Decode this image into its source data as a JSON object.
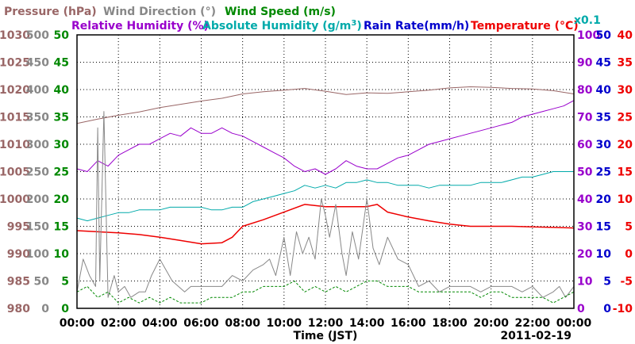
{
  "chart_data": {
    "type": "line",
    "date": "2011-02-19",
    "xlabel": "Time (JST)",
    "x_ticks": [
      "00:00",
      "02:00",
      "04:00",
      "06:00",
      "08:00",
      "10:00",
      "12:00",
      "14:00",
      "16:00",
      "18:00",
      "20:00",
      "22:00",
      "00:00"
    ],
    "x_range_hours": [
      0,
      24
    ],
    "legend": {
      "row1": [
        {
          "name": "Pressure (hPa)",
          "color": "#996666"
        },
        {
          "name": "Wind Direction (°)",
          "color": "#888888"
        },
        {
          "name": "Wind Speed (m/s)",
          "color": "#008800"
        }
      ],
      "row2": [
        {
          "name": "Relative Humidity (%)",
          "color": "#9900cc"
        },
        {
          "name": "Absolute Humidity (g/m³)",
          "color": "#00aaaa",
          "main": "Absolute Humidity (g/m",
          "sup": "3",
          "close": ")"
        },
        {
          "name": "Rain Rate(mm/h)",
          "color": "#0000cc"
        },
        {
          "name": "Temperature (°C)",
          "color": "#ee0000"
        }
      ],
      "scale_note": "x0.1"
    },
    "axes": {
      "pressure": {
        "color": "#996666",
        "min": 980,
        "max": 1030,
        "ticks": [
          "980",
          "985",
          "990",
          "995",
          "1000",
          "1005",
          "1010",
          "1015",
          "1020",
          "1025",
          "1030"
        ]
      },
      "wind_direction": {
        "color": "#888888",
        "min": 0,
        "max": 500,
        "ticks": [
          "0",
          "50",
          "100",
          "150",
          "200",
          "250",
          "300",
          "350",
          "400",
          "450",
          "500"
        ]
      },
      "wind_speed": {
        "color": "#008800",
        "min": 0,
        "max": 50,
        "ticks": [
          "0",
          "5",
          "10",
          "15",
          "20",
          "25",
          "30",
          "35",
          "40",
          "45",
          "50"
        ]
      },
      "humidity": {
        "color": "#9900cc",
        "min": 0,
        "max": 100,
        "ticks": [
          "0",
          "10",
          "20",
          "30",
          "40",
          "50",
          "60",
          "70",
          "80",
          "90",
          "100"
        ]
      },
      "rain_rate": {
        "color": "#0000cc",
        "min": 0,
        "max": 50,
        "ticks": [
          "0",
          "5",
          "10",
          "15",
          "20",
          "25",
          "30",
          "35",
          "40",
          "45",
          "50"
        ]
      },
      "temperature": {
        "color": "#ee0000",
        "min": -10,
        "max": 40,
        "ticks": [
          "-10",
          "-5",
          "0",
          "5",
          "10",
          "15",
          "20",
          "25",
          "30",
          "35",
          "40"
        ]
      }
    },
    "series": [
      {
        "name": "Pressure (hPa)",
        "axis": "pressure",
        "color": "#996666",
        "x": [
          0,
          1,
          2,
          3,
          4,
          5,
          6,
          7,
          8,
          9,
          10,
          11,
          12,
          13,
          14,
          15,
          16,
          17,
          18,
          19,
          20,
          21,
          22,
          23,
          24
        ],
        "y": [
          1013.8,
          1014.6,
          1015.3,
          1015.9,
          1016.7,
          1017.3,
          1017.9,
          1018.4,
          1019.2,
          1019.6,
          1019.9,
          1020.2,
          1019.7,
          1019.1,
          1019.4,
          1019.3,
          1019.6,
          1019.9,
          1020.3,
          1020.5,
          1020.4,
          1020.2,
          1020.1,
          1019.8,
          1019.2
        ]
      },
      {
        "name": "Relative Humidity (%)",
        "axis": "humidity",
        "color": "#9900cc",
        "x": [
          0,
          0.5,
          1,
          1.5,
          2,
          2.5,
          3,
          3.5,
          4,
          4.5,
          5,
          5.5,
          6,
          6.5,
          7,
          7.5,
          8,
          8.5,
          9,
          9.5,
          10,
          10.5,
          11,
          11.5,
          12,
          12.5,
          13,
          13.5,
          14,
          14.5,
          15,
          15.5,
          16,
          16.5,
          17,
          17.5,
          18,
          18.5,
          19,
          19.5,
          20,
          20.5,
          21,
          21.5,
          22,
          22.5,
          23,
          23.5,
          24
        ],
        "y": [
          51,
          50,
          54,
          52,
          56,
          58,
          60,
          60,
          62,
          64,
          63,
          66,
          64,
          64,
          66,
          64,
          63,
          61,
          59,
          57,
          55,
          52,
          50,
          51,
          49,
          51,
          54,
          52,
          51,
          51,
          53,
          55,
          56,
          58,
          60,
          61,
          62,
          63,
          64,
          65,
          66,
          67,
          68,
          70,
          71,
          72,
          73,
          74,
          76
        ]
      },
      {
        "name": "Absolute Humidity (g/m³)",
        "axis": "humidity",
        "color": "#00aaaa",
        "x": [
          0,
          0.5,
          1,
          1.5,
          2,
          2.5,
          3,
          3.5,
          4,
          4.5,
          5,
          5.5,
          6,
          6.5,
          7,
          7.5,
          8,
          8.5,
          9,
          9.5,
          10,
          10.5,
          11,
          11.5,
          12,
          12.5,
          13,
          13.5,
          14,
          14.5,
          15,
          15.5,
          16,
          16.5,
          17,
          17.5,
          18,
          18.5,
          19,
          19.5,
          20,
          20.5,
          21,
          21.5,
          22,
          22.5,
          23,
          23.5,
          24
        ],
        "y": [
          33,
          32,
          33,
          34,
          35,
          35,
          36,
          36,
          36,
          37,
          37,
          37,
          37,
          36,
          36,
          37,
          37,
          39,
          40,
          41,
          42,
          43,
          45,
          44,
          45,
          44,
          46,
          46,
          47,
          46,
          46,
          45,
          45,
          45,
          44,
          45,
          45,
          45,
          45,
          46,
          46,
          46,
          47,
          48,
          48,
          49,
          50,
          50,
          50
        ]
      },
      {
        "name": "Temperature (°C)",
        "axis": "temperature",
        "color": "#ee0000",
        "x": [
          0,
          1,
          2,
          3,
          4,
          5,
          6,
          7,
          7.5,
          8,
          9,
          10,
          11,
          12,
          13,
          14,
          14.5,
          15,
          16,
          17,
          18,
          19,
          20,
          21,
          22,
          23,
          24
        ],
        "y": [
          4.2,
          4.0,
          3.8,
          3.5,
          3.0,
          2.4,
          1.8,
          2.0,
          3.0,
          5.0,
          6.2,
          7.6,
          9.0,
          8.6,
          8.6,
          8.6,
          9.0,
          7.6,
          6.7,
          6.0,
          5.4,
          5.0,
          5.0,
          5.0,
          4.9,
          4.8,
          4.7
        ]
      },
      {
        "name": "Wind Direction (°)",
        "axis": "wind_direction",
        "color": "#888888",
        "x": [
          0,
          0.3,
          0.6,
          0.9,
          1.0,
          1.1,
          1.3,
          1.5,
          1.8,
          2.0,
          2.3,
          2.6,
          3.0,
          3.3,
          3.6,
          4.0,
          4.3,
          4.6,
          4.9,
          5.2,
          5.5,
          6.0,
          6.5,
          7.0,
          7.5,
          8.0,
          8.5,
          9.0,
          9.3,
          9.6,
          10.0,
          10.3,
          10.6,
          10.9,
          11.2,
          11.5,
          11.8,
          12.0,
          12.2,
          12.5,
          12.8,
          13.0,
          13.3,
          13.6,
          14.0,
          14.3,
          14.6,
          15.0,
          15.5,
          16.0,
          16.5,
          17.0,
          17.5,
          18.0,
          18.5,
          19.0,
          19.5,
          20.0,
          20.5,
          21.0,
          21.5,
          22.0,
          22.5,
          23.0,
          23.3,
          23.6,
          24
        ],
        "y": [
          30,
          90,
          60,
          40,
          330,
          50,
          360,
          20,
          60,
          30,
          40,
          20,
          30,
          30,
          60,
          90,
          70,
          50,
          40,
          30,
          40,
          40,
          40,
          40,
          60,
          50,
          70,
          80,
          90,
          60,
          130,
          60,
          140,
          100,
          130,
          90,
          200,
          170,
          130,
          190,
          100,
          60,
          140,
          90,
          200,
          110,
          80,
          130,
          90,
          80,
          40,
          50,
          30,
          40,
          40,
          40,
          30,
          40,
          40,
          40,
          30,
          40,
          20,
          30,
          40,
          20,
          40
        ]
      },
      {
        "name": "Wind Speed (m/s)",
        "axis": "wind_speed",
        "color": "#008800",
        "x": [
          0,
          0.5,
          1,
          1.5,
          2,
          2.5,
          3,
          3.5,
          4,
          4.5,
          5,
          5.5,
          6,
          6.5,
          7,
          7.5,
          8,
          8.5,
          9,
          9.5,
          10,
          10.5,
          11,
          11.5,
          12,
          12.5,
          13,
          13.5,
          14,
          14.5,
          15,
          15.5,
          16,
          16.5,
          17,
          17.5,
          18,
          18.5,
          19,
          19.5,
          20,
          20.5,
          21,
          21.5,
          22,
          22.5,
          23,
          23.5,
          24
        ],
        "y": [
          3,
          4,
          2,
          3,
          1,
          2,
          1,
          2,
          1,
          2,
          1,
          1,
          1,
          2,
          2,
          2,
          3,
          3,
          4,
          4,
          4,
          5,
          3,
          4,
          3,
          4,
          3,
          4,
          5,
          5,
          4,
          4,
          4,
          3,
          3,
          3,
          3,
          3,
          3,
          2,
          3,
          3,
          2,
          2,
          2,
          2,
          1,
          2,
          3
        ]
      }
    ]
  }
}
